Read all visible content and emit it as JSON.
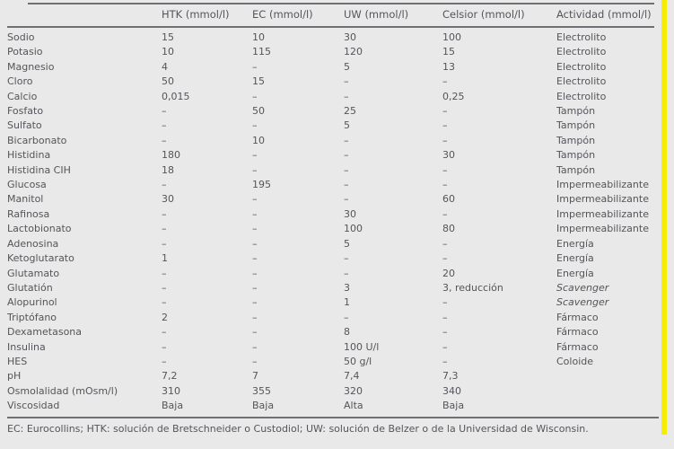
{
  "table": {
    "columns": [
      "",
      "HTK (mmol/l)",
      "EC (mmol/l)",
      "UW (mmol/l)",
      "Celsior (mmol/l)",
      "Actividad (mmol/l)"
    ],
    "rows": [
      {
        "cells": [
          "Sodio",
          "15",
          "10",
          "30",
          "100",
          "Electrolito"
        ],
        "activity_italic": false
      },
      {
        "cells": [
          "Potasio",
          "10",
          "115",
          "120",
          "15",
          "Electrolito"
        ],
        "activity_italic": false
      },
      {
        "cells": [
          "Magnesio",
          "4",
          "–",
          "5",
          "13",
          "Electrolito"
        ],
        "activity_italic": false
      },
      {
        "cells": [
          "Cloro",
          "50",
          "15",
          "–",
          "–",
          "Electrolito"
        ],
        "activity_italic": false
      },
      {
        "cells": [
          "Calcio",
          "0,015",
          "–",
          "–",
          "0,25",
          "Electrolito"
        ],
        "activity_italic": false
      },
      {
        "cells": [
          "Fosfato",
          "–",
          "50",
          "25",
          "–",
          "Tampón"
        ],
        "activity_italic": false
      },
      {
        "cells": [
          "Sulfato",
          "–",
          "–",
          "5",
          "–",
          "Tampón"
        ],
        "activity_italic": false
      },
      {
        "cells": [
          "Bicarbonato",
          "–",
          "10",
          "–",
          "–",
          "Tampón"
        ],
        "activity_italic": false
      },
      {
        "cells": [
          "Histidina",
          "180",
          "–",
          "–",
          "30",
          "Tampón"
        ],
        "activity_italic": false
      },
      {
        "cells": [
          "Histidina CIH",
          "18",
          "–",
          "–",
          "–",
          "Tampón"
        ],
        "activity_italic": false
      },
      {
        "cells": [
          "Glucosa",
          "–",
          "195",
          "–",
          "–",
          "Impermeabilizante"
        ],
        "activity_italic": false
      },
      {
        "cells": [
          "Manitol",
          "30",
          "–",
          "–",
          "60",
          "Impermeabilizante"
        ],
        "activity_italic": false
      },
      {
        "cells": [
          "Rafinosa",
          "–",
          "–",
          "30",
          "–",
          "Impermeabilizante"
        ],
        "activity_italic": false
      },
      {
        "cells": [
          "Lactobionato",
          "–",
          "–",
          "100",
          "80",
          "Impermeabilizante"
        ],
        "activity_italic": false
      },
      {
        "cells": [
          "Adenosina",
          "–",
          "–",
          "5",
          "–",
          "Energía"
        ],
        "activity_italic": false
      },
      {
        "cells": [
          "Ketoglutarato",
          "1",
          "–",
          "–",
          "–",
          "Energía"
        ],
        "activity_italic": false
      },
      {
        "cells": [
          "Glutamato",
          "–",
          "–",
          "–",
          "20",
          "Energía"
        ],
        "activity_italic": false
      },
      {
        "cells": [
          "Glutatión",
          "–",
          "–",
          "3",
          "3, reducción",
          "Scavenger"
        ],
        "activity_italic": true
      },
      {
        "cells": [
          "Alopurinol",
          "–",
          "–",
          "1",
          "–",
          "Scavenger"
        ],
        "activity_italic": true
      },
      {
        "cells": [
          "Triptófano",
          "2",
          "–",
          "–",
          "–",
          "Fármaco"
        ],
        "activity_italic": false
      },
      {
        "cells": [
          "Dexametasona",
          "–",
          "–",
          "8",
          "–",
          "Fármaco"
        ],
        "activity_italic": false
      },
      {
        "cells": [
          "Insulina",
          "–",
          "–",
          "100 U/l",
          "–",
          "Fármaco"
        ],
        "activity_italic": false
      },
      {
        "cells": [
          "HES",
          "–",
          "–",
          "50 g/l",
          "–",
          "Coloide"
        ],
        "activity_italic": false
      },
      {
        "cells": [
          "pH",
          "7,2",
          "7",
          "7,4",
          "7,3",
          ""
        ],
        "activity_italic": false
      },
      {
        "cells": [
          "Osmolalidad (mOsm/l)",
          "310",
          "355",
          "320",
          "340",
          ""
        ],
        "activity_italic": false
      },
      {
        "cells": [
          "Viscosidad",
          "Baja",
          "Baja",
          "Alta",
          "Baja",
          ""
        ],
        "activity_italic": false
      }
    ],
    "footnote": "EC: Eurocollins; HTK: solución de Bretschneider o Custodiol; UW: solución de Belzer o de la Universidad de Wisconsin."
  },
  "colors": {
    "background": "#e9e9e9",
    "text": "#54555a",
    "rule": "#6f7074",
    "highlight_bar": "#f6ee00"
  }
}
